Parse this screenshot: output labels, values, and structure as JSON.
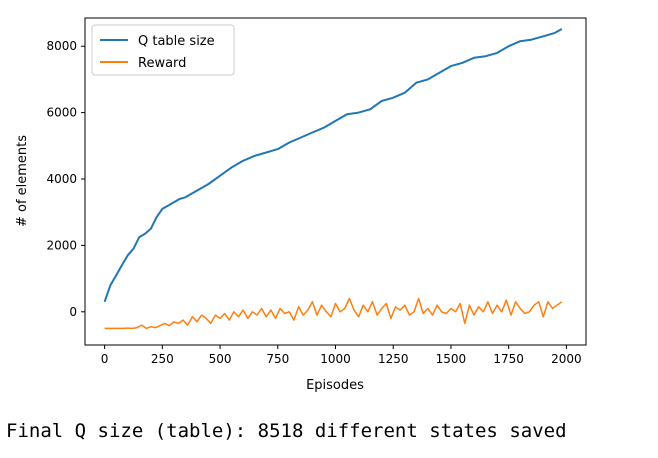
{
  "chart_data": {
    "type": "line",
    "title": "",
    "xlabel": "Episodes",
    "ylabel": "# of elements",
    "xlim": [
      -85,
      2085
    ],
    "ylim": [
      -1000,
      8850
    ],
    "xticks": [
      0,
      250,
      500,
      750,
      1000,
      1250,
      1500,
      1750,
      2000
    ],
    "yticks": [
      0,
      2000,
      4000,
      6000,
      8000
    ],
    "legend": "top-left",
    "grid": false,
    "series": [
      {
        "name": "Q table size",
        "color": "#1f77b4",
        "x": [
          0,
          25,
          50,
          75,
          100,
          125,
          150,
          175,
          200,
          225,
          250,
          275,
          300,
          325,
          350,
          375,
          400,
          450,
          500,
          550,
          600,
          650,
          700,
          750,
          800,
          850,
          900,
          950,
          1000,
          1050,
          1100,
          1150,
          1200,
          1250,
          1300,
          1350,
          1400,
          1450,
          1500,
          1550,
          1600,
          1650,
          1700,
          1750,
          1800,
          1850,
          1900,
          1950,
          1980
        ],
        "y": [
          300,
          800,
          1100,
          1400,
          1700,
          1900,
          2250,
          2350,
          2500,
          2850,
          3100,
          3200,
          3300,
          3400,
          3450,
          3550,
          3650,
          3850,
          4100,
          4350,
          4550,
          4700,
          4800,
          4900,
          5100,
          5250,
          5400,
          5550,
          5750,
          5950,
          6000,
          6100,
          6350,
          6450,
          6600,
          6900,
          7000,
          7200,
          7400,
          7500,
          7650,
          7700,
          7800,
          8000,
          8150,
          8200,
          8300,
          8400,
          8518
        ]
      },
      {
        "name": "Reward",
        "color": "#ff7f0e",
        "x": [
          0,
          20,
          40,
          60,
          80,
          100,
          120,
          140,
          160,
          180,
          200,
          220,
          240,
          260,
          280,
          300,
          320,
          340,
          360,
          380,
          400,
          420,
          440,
          460,
          480,
          500,
          520,
          540,
          560,
          580,
          600,
          620,
          640,
          660,
          680,
          700,
          720,
          740,
          760,
          780,
          800,
          820,
          840,
          860,
          880,
          900,
          920,
          940,
          960,
          980,
          1000,
          1020,
          1040,
          1060,
          1080,
          1100,
          1120,
          1140,
          1160,
          1180,
          1200,
          1220,
          1240,
          1260,
          1280,
          1300,
          1320,
          1340,
          1360,
          1380,
          1400,
          1420,
          1440,
          1460,
          1480,
          1500,
          1520,
          1540,
          1560,
          1580,
          1600,
          1620,
          1640,
          1660,
          1680,
          1700,
          1720,
          1740,
          1760,
          1780,
          1800,
          1820,
          1840,
          1860,
          1880,
          1900,
          1920,
          1940,
          1960,
          1980
        ],
        "y": [
          -500,
          -500,
          -500,
          -500,
          -500,
          -490,
          -500,
          -480,
          -400,
          -500,
          -450,
          -480,
          -420,
          -350,
          -420,
          -300,
          -350,
          -250,
          -400,
          -150,
          -300,
          -100,
          -200,
          -350,
          -100,
          -200,
          -50,
          -250,
          0,
          -150,
          50,
          -200,
          0,
          -100,
          100,
          -150,
          50,
          -200,
          100,
          -50,
          0,
          -250,
          150,
          -100,
          50,
          300,
          -100,
          200,
          0,
          -150,
          250,
          0,
          100,
          400,
          50,
          -150,
          200,
          0,
          300,
          -100,
          100,
          250,
          -200,
          150,
          50,
          200,
          -100,
          0,
          400,
          -50,
          100,
          -100,
          200,
          0,
          -50,
          100,
          0,
          250,
          -350,
          200,
          -100,
          150,
          0,
          300,
          -50,
          200,
          0,
          350,
          -100,
          300,
          100,
          -50,
          0,
          200,
          300,
          -150,
          300,
          100,
          200,
          300
        ]
      }
    ]
  },
  "output": {
    "text": "Final Q size (table): 8518 different states saved"
  }
}
